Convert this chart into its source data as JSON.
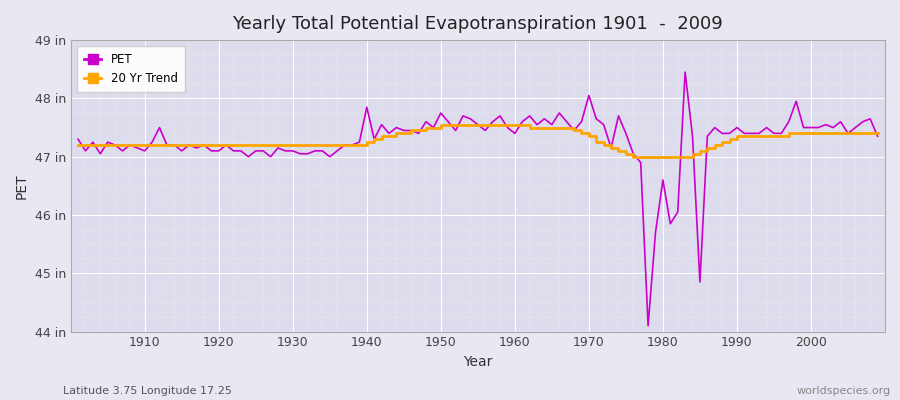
{
  "title": "Yearly Total Potential Evapotranspiration 1901  -  2009",
  "xlabel": "Year",
  "ylabel": "PET",
  "x_label_bottom": "Latitude 3.75 Longitude 17.25",
  "x_label_right": "worldspecies.org",
  "pet_color": "#CC00CC",
  "trend_color": "#FFA500",
  "background_color": "#E8E8F2",
  "plot_bg_color": "#DCDCEC",
  "ylim": [
    44,
    49
  ],
  "yticks": [
    44,
    45,
    46,
    47,
    48,
    49
  ],
  "ytick_labels": [
    "44 in",
    "45 in",
    "46 in",
    "47 in",
    "48 in",
    "49 in"
  ],
  "xticks": [
    1910,
    1920,
    1930,
    1940,
    1950,
    1960,
    1970,
    1980,
    1990,
    2000
  ],
  "years": [
    1901,
    1902,
    1903,
    1904,
    1905,
    1906,
    1907,
    1908,
    1909,
    1910,
    1911,
    1912,
    1913,
    1914,
    1915,
    1916,
    1917,
    1918,
    1919,
    1920,
    1921,
    1922,
    1923,
    1924,
    1925,
    1926,
    1927,
    1928,
    1929,
    1930,
    1931,
    1932,
    1933,
    1934,
    1935,
    1936,
    1937,
    1938,
    1939,
    1940,
    1941,
    1942,
    1943,
    1944,
    1945,
    1946,
    1947,
    1948,
    1949,
    1950,
    1951,
    1952,
    1953,
    1954,
    1955,
    1956,
    1957,
    1958,
    1959,
    1960,
    1961,
    1962,
    1963,
    1964,
    1965,
    1966,
    1967,
    1968,
    1969,
    1970,
    1971,
    1972,
    1973,
    1974,
    1975,
    1976,
    1977,
    1978,
    1979,
    1980,
    1981,
    1982,
    1983,
    1984,
    1985,
    1986,
    1987,
    1988,
    1989,
    1990,
    1991,
    1992,
    1993,
    1994,
    1995,
    1996,
    1997,
    1998,
    1999,
    2000,
    2001,
    2002,
    2003,
    2004,
    2005,
    2006,
    2007,
    2008,
    2009
  ],
  "pet_values": [
    47.3,
    47.1,
    47.25,
    47.05,
    47.25,
    47.2,
    47.1,
    47.2,
    47.15,
    47.1,
    47.25,
    47.5,
    47.2,
    47.2,
    47.1,
    47.2,
    47.15,
    47.2,
    47.1,
    47.1,
    47.2,
    47.1,
    47.1,
    47.0,
    47.1,
    47.1,
    47.0,
    47.15,
    47.1,
    47.1,
    47.05,
    47.05,
    47.1,
    47.1,
    47.0,
    47.1,
    47.2,
    47.2,
    47.25,
    47.85,
    47.3,
    47.55,
    47.4,
    47.5,
    47.45,
    47.45,
    47.4,
    47.6,
    47.5,
    47.75,
    47.6,
    47.45,
    47.7,
    47.65,
    47.55,
    47.45,
    47.6,
    47.7,
    47.5,
    47.4,
    47.6,
    47.7,
    47.55,
    47.65,
    47.55,
    47.75,
    47.6,
    47.45,
    47.6,
    48.05,
    47.65,
    47.55,
    47.15,
    47.7,
    47.4,
    47.05,
    46.9,
    44.1,
    45.7,
    46.6,
    45.85,
    46.05,
    48.45,
    47.35,
    44.85,
    47.35,
    47.5,
    47.4,
    47.4,
    47.5,
    47.4,
    47.4,
    47.4,
    47.5,
    47.4,
    47.4,
    47.6,
    47.95,
    47.5,
    47.5,
    47.5,
    47.55,
    47.5,
    47.6,
    47.4,
    47.5,
    47.6,
    47.65,
    47.35
  ],
  "trend_values": [
    47.2,
    47.2,
    47.2,
    47.2,
    47.2,
    47.2,
    47.2,
    47.2,
    47.2,
    47.2,
    47.2,
    47.2,
    47.2,
    47.2,
    47.2,
    47.2,
    47.2,
    47.2,
    47.2,
    47.2,
    47.2,
    47.2,
    47.2,
    47.2,
    47.2,
    47.2,
    47.2,
    47.2,
    47.2,
    47.2,
    47.2,
    47.2,
    47.2,
    47.2,
    47.2,
    47.2,
    47.2,
    47.2,
    47.2,
    47.25,
    47.3,
    47.35,
    47.35,
    47.4,
    47.4,
    47.45,
    47.45,
    47.5,
    47.5,
    47.55,
    47.55,
    47.55,
    47.55,
    47.55,
    47.55,
    47.55,
    47.55,
    47.55,
    47.55,
    47.55,
    47.55,
    47.5,
    47.5,
    47.5,
    47.5,
    47.5,
    47.5,
    47.45,
    47.4,
    47.35,
    47.25,
    47.2,
    47.15,
    47.1,
    47.05,
    47.0,
    47.0,
    47.0,
    47.0,
    47.0,
    47.0,
    47.0,
    47.0,
    47.05,
    47.1,
    47.15,
    47.2,
    47.25,
    47.3,
    47.35,
    47.35,
    47.35,
    47.35,
    47.35,
    47.35,
    47.35,
    47.4,
    47.4,
    47.4,
    47.4,
    47.4,
    47.4,
    47.4,
    47.4,
    47.4,
    47.4,
    47.4,
    47.4,
    47.4
  ]
}
